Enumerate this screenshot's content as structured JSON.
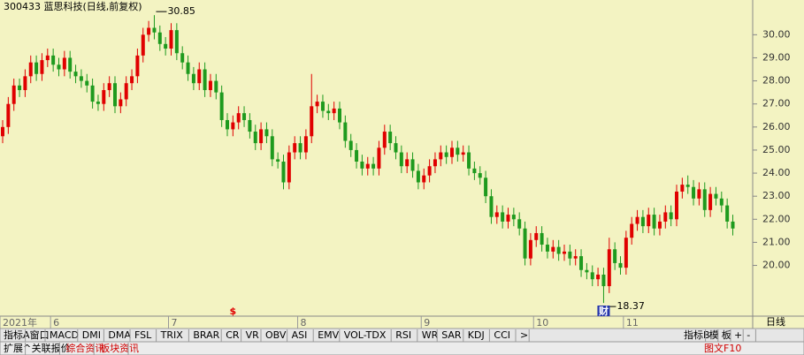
{
  "chart_data": {
    "type": "candlestick",
    "title": "300433 蓝思科技(日线,前复权)",
    "up_color": "#e00000",
    "down_color": "#1e9a1e",
    "ylim": [
      17.8,
      31.2
    ],
    "yticks": [
      {
        "value": 20,
        "label": "20.00"
      },
      {
        "value": 21,
        "label": "21.00"
      },
      {
        "value": 22,
        "label": "22.00"
      },
      {
        "value": 23,
        "label": "23.00"
      },
      {
        "value": 24,
        "label": "24.00"
      },
      {
        "value": 25,
        "label": "25.00"
      },
      {
        "value": 26,
        "label": "26.00"
      },
      {
        "value": 27,
        "label": "27.00"
      },
      {
        "value": 28,
        "label": "28.00"
      },
      {
        "value": 29,
        "label": "29.00"
      },
      {
        "value": 30,
        "label": "30.00"
      }
    ],
    "x_labels": [
      {
        "label": "2021年",
        "index": 0
      },
      {
        "label": "6",
        "index": 9
      },
      {
        "label": "7",
        "index": 30
      },
      {
        "label": "8",
        "index": 53
      },
      {
        "label": "9",
        "index": 75
      },
      {
        "label": "10",
        "index": 95
      },
      {
        "label": "11",
        "index": 111
      }
    ],
    "annotations": [
      {
        "value": 30.85,
        "index": 27,
        "side": "high"
      },
      {
        "value": 18.37,
        "index": 107,
        "side": "low"
      }
    ],
    "markers": [
      {
        "text": "$",
        "index": 41,
        "color": "#e00000"
      },
      {
        "text": "财",
        "index": 107,
        "color": "#ffffff"
      }
    ],
    "open": [
      25.6,
      26.0,
      27.0,
      27.8,
      27.6,
      28.2,
      28.8,
      28.3,
      28.9,
      29.1,
      28.7,
      28.5,
      29.0,
      28.4,
      28.2,
      28.0,
      27.8,
      27.1,
      27.0,
      27.6,
      27.9,
      26.9,
      27.2,
      27.9,
      28.2,
      29.1,
      30.0,
      30.3,
      30.1,
      29.6,
      29.4,
      30.2,
      29.2,
      28.8,
      28.3,
      27.9,
      28.5,
      27.6,
      28.0,
      27.5,
      26.3,
      25.9,
      26.2,
      26.6,
      26.3,
      25.8,
      25.3,
      25.9,
      25.6,
      24.6,
      24.5,
      23.6,
      24.9,
      25.3,
      24.9,
      25.6,
      26.9,
      27.1,
      26.7,
      26.6,
      26.8,
      26.2,
      25.4,
      25.0,
      24.5,
      24.2,
      24.4,
      24.2,
      25.1,
      25.8,
      25.3,
      24.9,
      24.3,
      24.6,
      24.1,
      23.6,
      23.9,
      24.3,
      24.6,
      24.9,
      24.7,
      25.1,
      24.8,
      24.9,
      24.2,
      24.0,
      23.8,
      23.0,
      22.1,
      22.3,
      21.9,
      22.2,
      22.0,
      21.6,
      20.3,
      21.1,
      21.4,
      20.9,
      20.6,
      20.8,
      20.5,
      20.6,
      20.3,
      20.4,
      19.8,
      19.7,
      19.4,
      19.6,
      19.1,
      20.7,
      20.1,
      19.9,
      21.2,
      21.8,
      22.1,
      21.7,
      22.2,
      21.6,
      21.9,
      22.3,
      22.0,
      23.2,
      23.5,
      23.4,
      22.9,
      23.3,
      22.4,
      23.1,
      22.9,
      22.6,
      21.9
    ],
    "high": [
      26.3,
      27.3,
      28.1,
      28.1,
      28.5,
      29.1,
      29.1,
      29.2,
      29.4,
      29.4,
      29.0,
      29.3,
      29.3,
      28.7,
      28.5,
      28.3,
      28.1,
      27.4,
      27.9,
      28.2,
      28.2,
      27.5,
      28.2,
      28.5,
      29.4,
      30.3,
      30.6,
      30.85,
      30.4,
      29.9,
      30.5,
      30.5,
      29.5,
      29.1,
      28.6,
      28.8,
      28.8,
      28.3,
      28.3,
      27.8,
      26.6,
      26.5,
      26.9,
      26.9,
      26.6,
      26.1,
      26.2,
      26.2,
      25.9,
      24.9,
      24.8,
      25.2,
      25.6,
      25.6,
      25.9,
      28.3,
      27.4,
      27.4,
      27.0,
      27.1,
      27.1,
      26.5,
      25.7,
      25.3,
      24.8,
      24.7,
      24.7,
      25.4,
      26.1,
      26.1,
      25.6,
      25.2,
      24.9,
      24.9,
      24.4,
      24.2,
      24.6,
      24.9,
      25.2,
      25.2,
      25.4,
      25.4,
      25.2,
      25.2,
      24.5,
      24.3,
      24.1,
      23.3,
      22.6,
      22.6,
      22.5,
      22.5,
      22.3,
      21.9,
      21.4,
      21.7,
      21.7,
      21.2,
      21.1,
      21.1,
      20.9,
      20.9,
      20.7,
      20.7,
      20.1,
      20.0,
      19.9,
      19.9,
      21.2,
      21.0,
      20.4,
      21.5,
      22.1,
      22.4,
      22.4,
      22.5,
      22.5,
      22.2,
      22.6,
      22.6,
      23.5,
      23.8,
      23.9,
      23.7,
      23.6,
      23.6,
      23.4,
      23.4,
      23.2,
      22.9,
      22.2
    ],
    "low": [
      25.3,
      25.7,
      26.7,
      27.3,
      27.3,
      27.9,
      28.0,
      28.0,
      28.6,
      28.4,
      28.2,
      28.2,
      28.1,
      27.9,
      27.7,
      27.5,
      26.8,
      26.7,
      26.7,
      27.3,
      26.6,
      26.6,
      26.9,
      27.6,
      27.9,
      28.8,
      29.7,
      29.8,
      29.3,
      29.1,
      29.1,
      28.9,
      28.5,
      28.0,
      27.6,
      27.6,
      27.3,
      27.3,
      27.2,
      26.0,
      25.6,
      25.6,
      25.9,
      26.0,
      25.5,
      25.0,
      25.0,
      25.3,
      24.3,
      24.2,
      23.3,
      23.3,
      24.6,
      24.6,
      24.6,
      25.3,
      26.6,
      26.4,
      26.3,
      26.3,
      25.9,
      25.1,
      24.7,
      24.2,
      23.9,
      23.9,
      23.9,
      23.9,
      24.8,
      25.0,
      24.6,
      24.0,
      24.0,
      23.8,
      23.3,
      23.3,
      23.6,
      24.0,
      24.3,
      24.4,
      24.4,
      24.5,
      24.5,
      23.9,
      23.7,
      23.5,
      22.7,
      21.8,
      21.8,
      21.6,
      21.6,
      21.7,
      21.3,
      20.0,
      20.0,
      20.8,
      20.6,
      20.3,
      20.3,
      20.2,
      20.2,
      20.0,
      20.0,
      19.5,
      19.4,
      19.1,
      19.1,
      18.37,
      18.8,
      19.8,
      19.6,
      19.6,
      20.9,
      21.5,
      21.4,
      21.4,
      21.3,
      21.3,
      21.6,
      21.7,
      21.7,
      22.9,
      23.1,
      22.6,
      22.6,
      22.1,
      22.1,
      22.6,
      22.3,
      21.6,
      21.3
    ],
    "close": [
      26.0,
      27.0,
      27.8,
      27.6,
      28.2,
      28.8,
      28.3,
      28.9,
      29.1,
      28.7,
      28.5,
      29.0,
      28.4,
      28.2,
      28.0,
      27.8,
      27.1,
      27.0,
      27.6,
      27.9,
      26.9,
      27.2,
      27.9,
      28.2,
      29.1,
      30.0,
      30.3,
      30.1,
      29.6,
      29.4,
      30.2,
      29.2,
      28.8,
      28.3,
      27.9,
      28.5,
      27.6,
      28.0,
      27.5,
      26.3,
      25.9,
      26.2,
      26.6,
      26.3,
      25.8,
      25.3,
      25.9,
      25.6,
      24.6,
      24.5,
      23.6,
      24.9,
      25.3,
      24.9,
      25.6,
      26.9,
      27.1,
      26.7,
      26.6,
      26.8,
      26.2,
      25.4,
      25.0,
      24.5,
      24.2,
      24.4,
      24.2,
      25.1,
      25.8,
      25.3,
      24.9,
      24.3,
      24.6,
      24.1,
      23.6,
      23.9,
      24.3,
      24.6,
      24.9,
      24.7,
      25.1,
      24.8,
      24.9,
      24.2,
      24.0,
      23.8,
      23.0,
      22.1,
      22.3,
      21.9,
      22.2,
      22.0,
      21.6,
      20.3,
      21.1,
      21.4,
      20.9,
      20.6,
      20.8,
      20.5,
      20.6,
      20.3,
      20.4,
      19.8,
      19.7,
      19.4,
      19.6,
      19.1,
      20.7,
      20.1,
      19.9,
      21.2,
      21.8,
      22.1,
      21.7,
      22.2,
      21.6,
      21.9,
      22.3,
      22.0,
      23.2,
      23.5,
      23.4,
      22.9,
      23.3,
      22.4,
      23.1,
      22.9,
      22.6,
      21.9,
      21.6
    ]
  },
  "toolbar": {
    "period": "日线",
    "indicator_tabs": [
      "指标A",
      "窗口",
      "MACD",
      "DMI",
      "DMA",
      "FSL",
      "TRIX",
      "BRAR",
      "CR",
      "VR",
      "OBV",
      "ASI",
      "EMV",
      "VOL-TDX",
      "RSI",
      "WR",
      "SAR",
      "KDJ",
      "CCI",
      ">"
    ],
    "right_tabs": [
      "指标B",
      "模",
      "板",
      "+",
      "-"
    ],
    "bottom_tabs": [
      "扩展^",
      "关联报价",
      "综合资讯",
      "板块资讯"
    ],
    "f10": "图文F10"
  }
}
